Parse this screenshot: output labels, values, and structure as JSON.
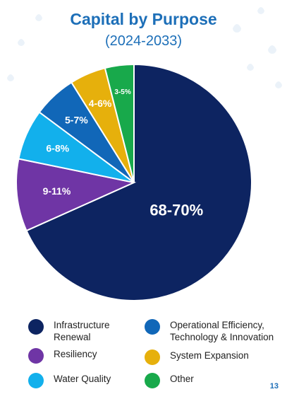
{
  "header": {
    "title": "Capital by Purpose",
    "subtitle": "(2024-2033)"
  },
  "chart_data": {
    "type": "pie",
    "title": "Capital by Purpose",
    "subtitle": "(2024-2033)",
    "slices": [
      {
        "name": "Infrastructure Renewal",
        "label": "68-70%",
        "value": 69,
        "color": "#0d2461"
      },
      {
        "name": "Resiliency",
        "label": "9-11%",
        "value": 10,
        "color": "#6f35a5"
      },
      {
        "name": "Water Quality",
        "label": "6-8%",
        "value": 7,
        "color": "#12b0ec"
      },
      {
        "name": "Operational Efficiency, Technology & Innovation",
        "label": "5-7%",
        "value": 6,
        "color": "#1167b8"
      },
      {
        "name": "System Expansion",
        "label": "4-6%",
        "value": 5,
        "color": "#e6b00c"
      },
      {
        "name": "Other",
        "label": "3-5%",
        "value": 4,
        "color": "#18a94b"
      }
    ]
  },
  "legend": {
    "items": [
      {
        "label_line1": "Infrastructure",
        "label_line2": "Renewal",
        "color": "#0d2461"
      },
      {
        "label_line1": "Operational Efficiency,",
        "label_line2": "Technology & Innovation",
        "color": "#1167b8"
      },
      {
        "label_line1": "Resiliency",
        "label_line2": "",
        "color": "#6f35a5"
      },
      {
        "label_line1": "System Expansion",
        "label_line2": "",
        "color": "#e6b00c"
      },
      {
        "label_line1": "Water Quality",
        "label_line2": "",
        "color": "#12b0ec"
      },
      {
        "label_line1": "Other",
        "label_line2": "",
        "color": "#18a94b"
      }
    ]
  },
  "footer": {
    "page_number": "13"
  }
}
